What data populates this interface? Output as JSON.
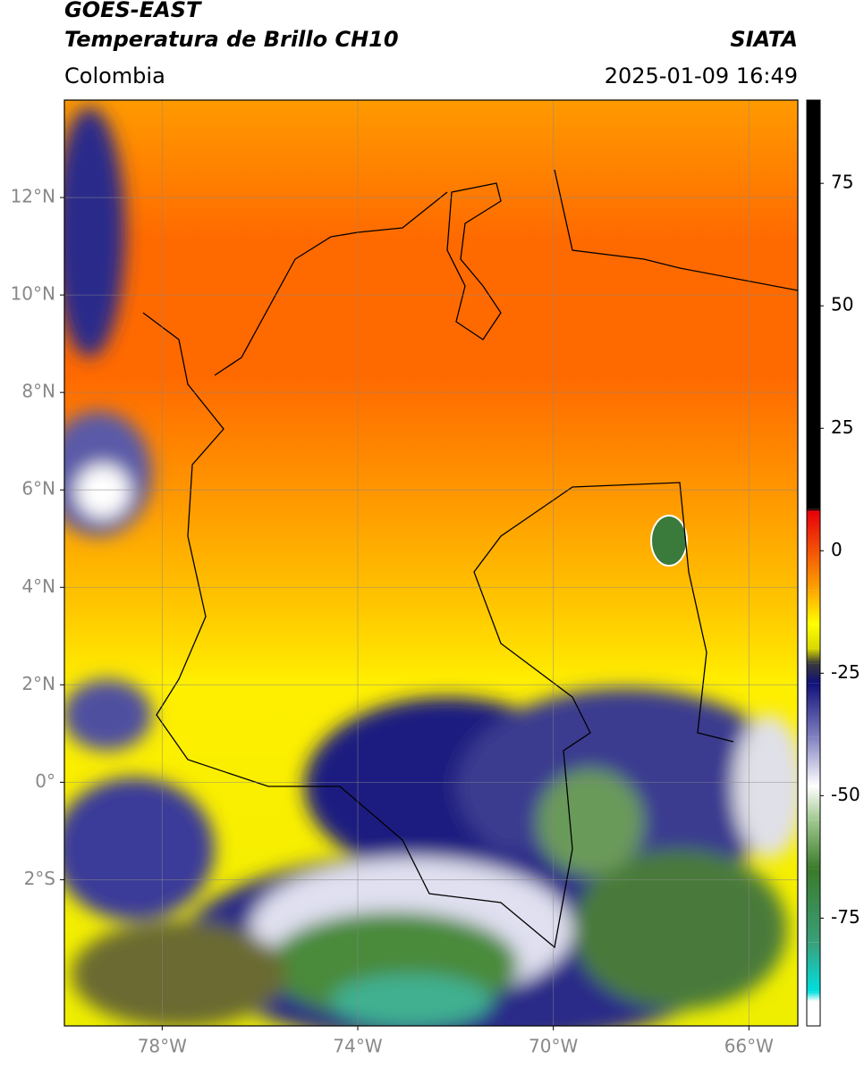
{
  "header": {
    "satellite": "GOES-EAST",
    "product": "Temperatura de Brillo CH10",
    "region": "Colombia",
    "source": "SIATA",
    "datetime": "2025-01-09 16:49"
  },
  "map": {
    "xlim": [
      -80,
      -65
    ],
    "ylim": [
      -5,
      14
    ],
    "xticks": [
      {
        "value": -78,
        "label": "78°W"
      },
      {
        "value": -74,
        "label": "74°W"
      },
      {
        "value": -70,
        "label": "70°W"
      },
      {
        "value": -66,
        "label": "66°W"
      }
    ],
    "yticks": [
      {
        "value": 12,
        "label": "12°N"
      },
      {
        "value": 10,
        "label": "10°N"
      },
      {
        "value": 8,
        "label": "8°N"
      },
      {
        "value": 6,
        "label": "6°N"
      },
      {
        "value": 4,
        "label": "4°N"
      },
      {
        "value": 2,
        "label": "2°N"
      },
      {
        "value": 0,
        "label": "0°"
      },
      {
        "value": -2,
        "label": "2°S"
      }
    ],
    "grid": true
  },
  "colorbar": {
    "lim": [
      -97,
      92
    ],
    "ticks": [
      75,
      50,
      25,
      0,
      -25,
      -50,
      -75
    ],
    "stops": [
      {
        "value": 92,
        "color": "#000000"
      },
      {
        "value": 8.5,
        "color": "#000000"
      },
      {
        "value": 8,
        "color": "#e8000a"
      },
      {
        "value": -8,
        "color": "#ffa500"
      },
      {
        "value": -15,
        "color": "#ffff00"
      },
      {
        "value": -20,
        "color": "#d8d800"
      },
      {
        "value": -23,
        "color": "#3a3a3a"
      },
      {
        "value": -27,
        "color": "#10107a"
      },
      {
        "value": -38,
        "color": "#8080c0"
      },
      {
        "value": -48,
        "color": "#ffffff"
      },
      {
        "value": -55,
        "color": "#a0c890"
      },
      {
        "value": -65,
        "color": "#3a7a2a"
      },
      {
        "value": -80,
        "color": "#3aa07a"
      },
      {
        "value": -90,
        "color": "#00e0e0"
      },
      {
        "value": -92,
        "color": "#ffffff"
      },
      {
        "value": -97,
        "color": "#ffffff"
      }
    ]
  }
}
